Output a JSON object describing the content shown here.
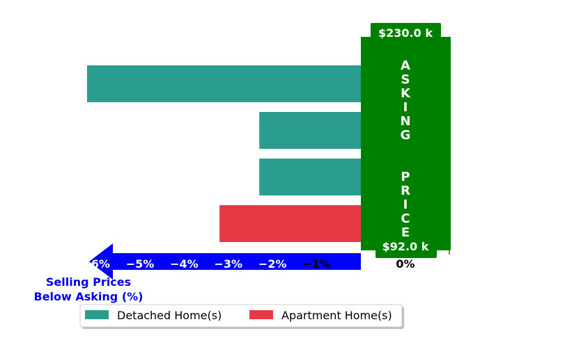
{
  "chart_data": {
    "type": "bar",
    "orientation": "horizontal",
    "categories": [
      "",
      "",
      "",
      ""
    ],
    "series": [
      {
        "name": "Detached Home(s)",
        "color": "#2a9d8f",
        "values": [
          -6.2,
          -2.3,
          -2.3,
          null
        ]
      },
      {
        "name": "Apartment Home(s)",
        "color": "#e63946",
        "values": [
          null,
          null,
          null,
          -3.2
        ]
      }
    ],
    "xlim": [
      -6.5,
      0.0
    ],
    "xticks": [
      {
        "value": -6,
        "label": "−6%"
      },
      {
        "value": -5,
        "label": "−5%"
      },
      {
        "value": -4,
        "label": "−4%"
      },
      {
        "value": -3,
        "label": "−3%"
      },
      {
        "value": -2,
        "label": "−2%"
      },
      {
        "value": -1,
        "label": "−1%"
      },
      {
        "value": 0,
        "label": "0%"
      }
    ],
    "xlabel_lines": [
      "Selling Prices",
      "Below Asking (%)"
    ],
    "asking_band": {
      "label": "ASKING  PRICE",
      "top_value_label": "$230.0 k",
      "bottom_value_label": "$92.0 k",
      "color": "#008000"
    },
    "legend": {
      "position": "bottom",
      "entries": [
        "Detached Home(s)",
        "Apartment Home(s)"
      ]
    },
    "arrow_color": "#0000ff",
    "grid": false
  }
}
